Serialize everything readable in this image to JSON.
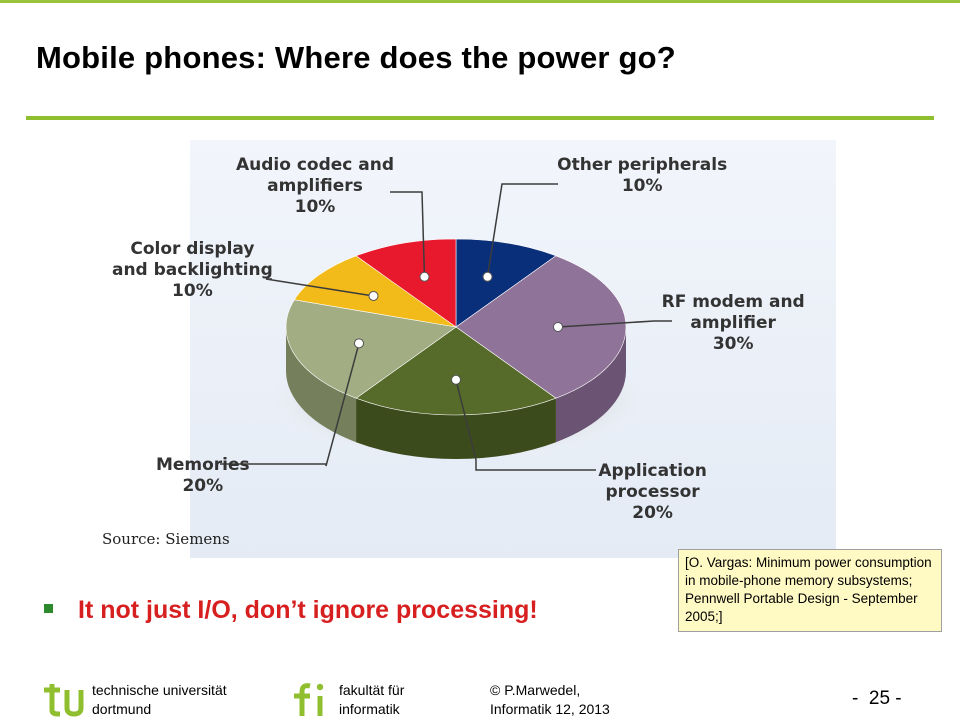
{
  "slide": {
    "title": "Mobile phones: Where does the power go?",
    "bullet": "It not just I/O, don’t ignore processing!",
    "citation": "[O. Vargas: Minimum power consumption in mobile-phone memory subsystems; Pennwell Portable Design - September 2005;]",
    "page_number": "-  25 -",
    "colors": {
      "rule": "#8fbf2f",
      "bullet_text": "#d71f1f",
      "bullet_mark": "#2c8a2c",
      "citation_bg": "#fff9c4"
    }
  },
  "footer": {
    "university_line1": "technische universität",
    "university_line2": "dortmund",
    "faculty_line1": "fakultät für",
    "faculty_line2": "informatik",
    "author_line1": "© P.Marwedel,",
    "author_line2": "Informatik 12,  2013",
    "logo_tu": "tu-logo",
    "logo_fi": "fi-logo"
  },
  "chart_data": {
    "type": "pie",
    "source": "Source: Siemens",
    "slices": [
      {
        "label": [
          "Other peripherals",
          "10%"
        ],
        "value": 10,
        "color": "#0a2f7a",
        "side": "#061c4a"
      },
      {
        "label": [
          "RF modem and",
          "amplifier",
          "30%"
        ],
        "value": 30,
        "color": "#8f7399",
        "side": "#6b5373"
      },
      {
        "label": [
          "Application",
          "processor",
          "20%"
        ],
        "value": 20,
        "color": "#566a2a",
        "side": "#3c4b1b"
      },
      {
        "label": [
          "Memories",
          "20%"
        ],
        "value": 20,
        "color": "#a2ad84",
        "side": "#767f5c"
      },
      {
        "label": [
          "Color display",
          "and backlighting",
          "10%"
        ],
        "value": 10,
        "color": "#f2bb19",
        "side": "#b98a0a"
      },
      {
        "label": [
          "Audio codec and",
          "amplifiers",
          "10%"
        ],
        "value": 10,
        "color": "#e8192c",
        "side": "#a80e1c"
      }
    ]
  }
}
